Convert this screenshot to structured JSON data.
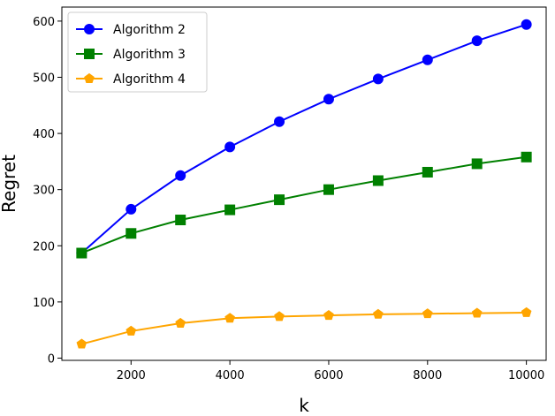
{
  "chart_data": {
    "type": "line",
    "title": "",
    "xlabel": "k",
    "ylabel": "Regret",
    "x": [
      1000,
      2000,
      3000,
      4000,
      5000,
      6000,
      7000,
      8000,
      9000,
      10000
    ],
    "xlim": [
      600,
      10400
    ],
    "ylim": [
      -4,
      625
    ],
    "xticks": [
      2000,
      4000,
      6000,
      8000,
      10000
    ],
    "yticks": [
      0,
      100,
      200,
      300,
      400,
      500,
      600
    ],
    "grid": false,
    "legend_position": "top-left",
    "series": [
      {
        "name": "Algorithm 2",
        "color": "#0000ff",
        "marker": "circle",
        "values": [
          187,
          265,
          325,
          376,
          421,
          461,
          497,
          531,
          565,
          594
        ]
      },
      {
        "name": "Algorithm 3",
        "color": "#008000",
        "marker": "square",
        "values": [
          187,
          222,
          246,
          264,
          282,
          300,
          316,
          331,
          346,
          358
        ]
      },
      {
        "name": "Algorithm 4",
        "color": "#ffa500",
        "marker": "pentagon",
        "values": [
          25,
          48,
          62,
          71,
          74,
          76,
          78,
          79,
          80,
          81
        ]
      }
    ]
  }
}
